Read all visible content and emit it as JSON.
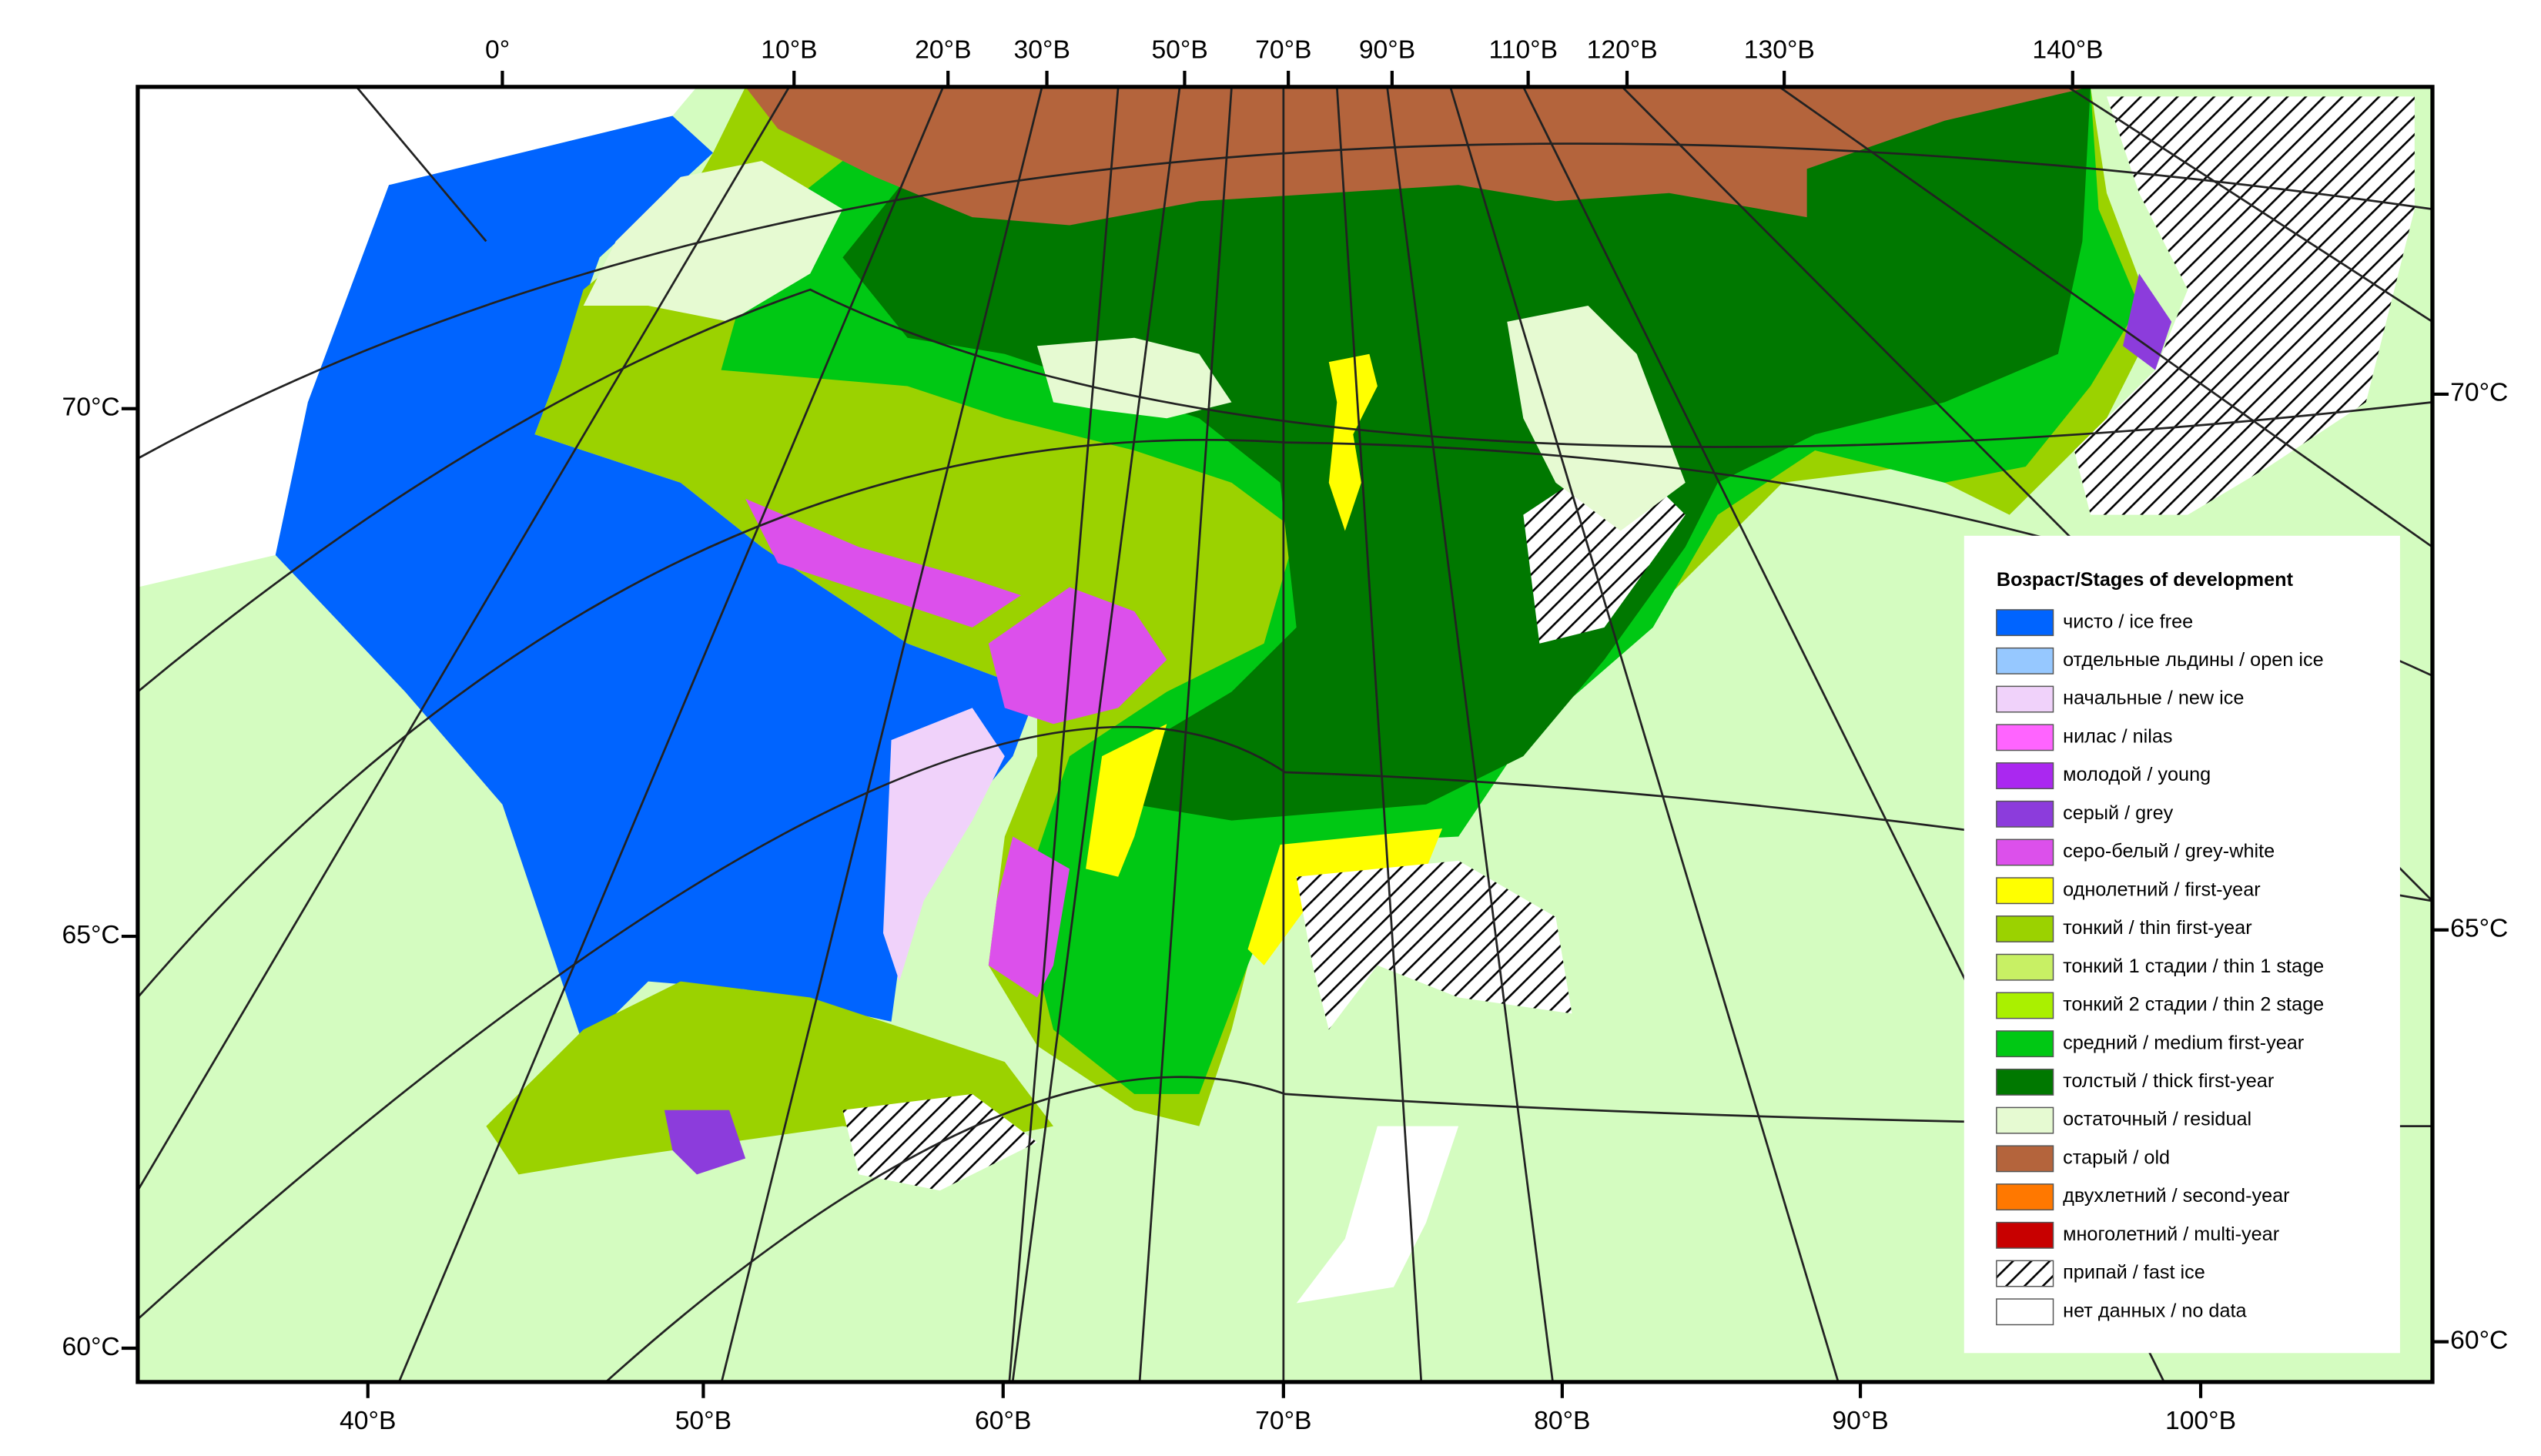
{
  "map": {
    "top_labels": [
      "0°",
      "10°В",
      "20°В",
      "30°В",
      "50°В",
      "70°В",
      "90°В",
      "110°В",
      "120°В",
      "130°В",
      "140°В"
    ],
    "bottom_labels": [
      "40°В",
      "50°В",
      "60°В",
      "70°В",
      "80°В",
      "90°В",
      "100°В"
    ],
    "left_labels": [
      "70°С",
      "65°С",
      "60°С"
    ],
    "right_labels": [
      "70°С",
      "65°С",
      "60°С"
    ]
  },
  "legend": {
    "title": "Возраст/Stages of development",
    "items": [
      {
        "label": "чисто / ice free",
        "color": "#0064ff"
      },
      {
        "label": "отдельные льдины / open ice",
        "color": "#96c8ff"
      },
      {
        "label": "начальные / new ice",
        "color": "#f0d2fa"
      },
      {
        "label": "нилас / nilas",
        "color": "#ff64ff"
      },
      {
        "label": "молодой / young",
        "color": "#aa28f0"
      },
      {
        "label": "серый / grey",
        "color": "#8c3cdc"
      },
      {
        "label": "серо-белый / grey-white",
        "color": "#dc50eb"
      },
      {
        "label": "однолетний / first-year",
        "color": "#ffff00"
      },
      {
        "label": "тонкий / thin first-year",
        "color": "#9bd200"
      },
      {
        "label": "тонкий 1 стадии / thin 1 stage",
        "color": "#c8f064"
      },
      {
        "label": "тонкий 2 стадии / thin 2 stage",
        "color": "#aaf000"
      },
      {
        "label": "средний / medium first-year",
        "color": "#00c814"
      },
      {
        "label": "толстый / thick first-year",
        "color": "#007800"
      },
      {
        "label": "остаточный / residual",
        "color": "#e6fad2"
      },
      {
        "label": "старый / old",
        "color": "#b4643c"
      },
      {
        "label": "двухлетний / second-year",
        "color": "#ff7800"
      },
      {
        "label": "многолетний / multi-year",
        "color": "#c80000"
      },
      {
        "label": "припай / fast ice",
        "pattern": "hatch"
      },
      {
        "label": "нет данных / no data",
        "color": "#ffffff"
      }
    ]
  }
}
